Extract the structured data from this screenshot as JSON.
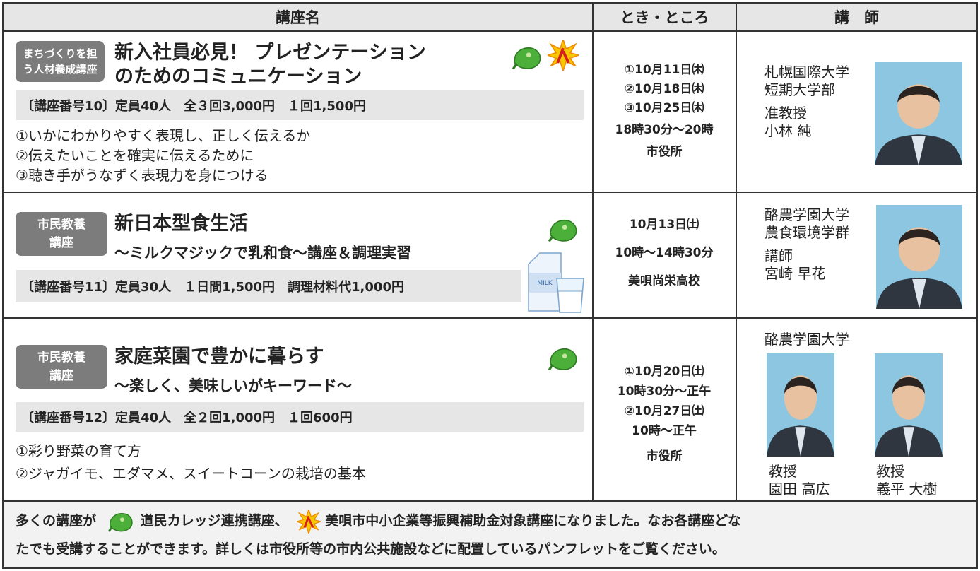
{
  "table": {
    "headers": [
      "講座名",
      "とき・ところ",
      "講　師"
    ],
    "rows": [
      {
        "tag": [
          "まちづくりを担",
          "う人材養成講座"
        ],
        "title": [
          "新入社員必見！ プレゼンテーション",
          "のためのコミュニケーション"
        ],
        "info": "〔講座番号10〕定員40人　全３回3,000円　１回1,500円",
        "contents": [
          "①いかにわかりやすく表現し、正しく伝えるか",
          "②伝えたいことを確実に伝えるために",
          "③聴き手がうなずく表現力を身につける"
        ],
        "schedule": [
          "①10月11日㈭",
          "②10月18日㈭",
          "③10月25日㈭",
          "18時30分～20時",
          "市役所"
        ],
        "lecturer": [
          "札幌国際大学",
          "短期大学部",
          "准教授",
          "小林 純"
        ]
      },
      {
        "tag": [
          "市民教養",
          "講座"
        ],
        "title": [
          "新日本型食生活"
        ],
        "subtitle": "～ミルクマジックで乳和食～講座＆調理実習",
        "info": "〔講座番号11〕定員30人　１日間1,500円　調理材料代1,000円",
        "milk_label": "MILK",
        "schedule": [
          "10月13日㈯",
          "10時～14時30分",
          "美唄尚栄高校"
        ],
        "lecturer": [
          "酪農学園大学",
          "農食環境学群",
          "講師",
          "宮崎 早花"
        ]
      },
      {
        "tag": [
          "市民教養",
          "講座"
        ],
        "title": [
          "家庭菜園で豊かに暮らす"
        ],
        "subtitle": "～楽しく、美味しいがキーワード～",
        "info": "〔講座番号12〕定員40人　全２回1,000円　１回600円",
        "contents": [
          "①彩り野菜の育て方",
          "②ジャガイモ、エダマメ、スイートコーンの栽培の基本"
        ],
        "schedule": [
          "①10月20日㈯",
          "10時30分～正午",
          "②10月27日㈯",
          "10時～正午",
          "市役所"
        ],
        "affiliation": "酪農学園大学",
        "people": [
          {
            "title": "教授",
            "name": "園田 高広"
          },
          {
            "title": "教授",
            "name": "義平 大樹"
          }
        ]
      }
    ]
  },
  "footer": [
    "多くの講座が",
    "道民カレッジ連携講座、",
    "美唄市中小企業等振興補助金対象講座になりました。なお各講座どな",
    "たでも受講することができます。詳しくは市役所等の市内公共施設などに配置しているパンフレットをご覧ください。"
  ]
}
